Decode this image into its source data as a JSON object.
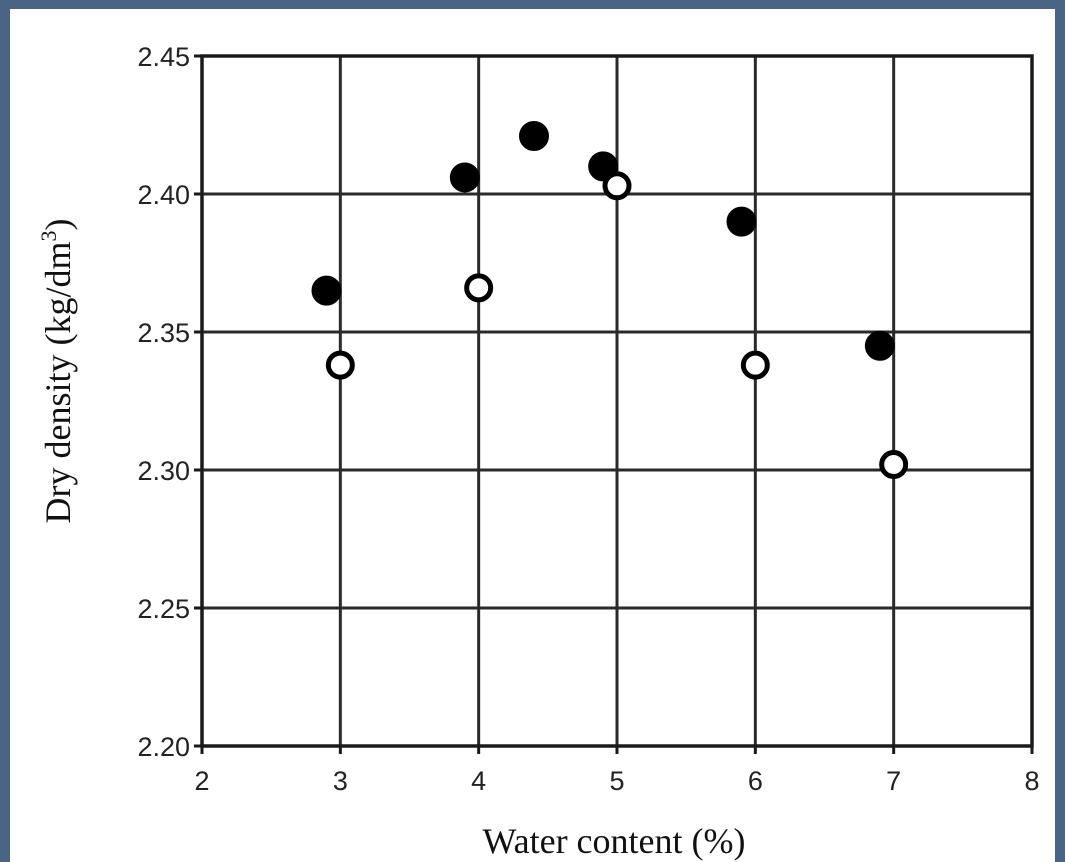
{
  "chart_data": {
    "type": "scatter",
    "title": "",
    "xlabel": "Water content (%)",
    "ylabel": "Dry density (kg/dm",
    "ylabel_sup": "3",
    "ylabel_close": ")",
    "xlim": [
      2,
      8
    ],
    "ylim": [
      2.2,
      2.45
    ],
    "grid": true,
    "x_ticks": [
      2,
      3,
      4,
      5,
      6,
      7,
      8
    ],
    "x_tick_labels": [
      "2",
      "3",
      "4",
      "5",
      "6",
      "7",
      "8"
    ],
    "y_ticks": [
      2.2,
      2.25,
      2.3,
      2.35,
      2.4,
      2.45
    ],
    "y_tick_labels": [
      "2.20",
      "2.25",
      "2.30",
      "2.35",
      "2.40",
      "2.45"
    ],
    "series": [
      {
        "marker": "filled-circle",
        "color": "#000000",
        "points": [
          {
            "x": 2.9,
            "y": 2.365
          },
          {
            "x": 3.9,
            "y": 2.406
          },
          {
            "x": 4.4,
            "y": 2.421
          },
          {
            "x": 4.9,
            "y": 2.41
          },
          {
            "x": 5.9,
            "y": 2.39
          },
          {
            "x": 6.9,
            "y": 2.345
          }
        ]
      },
      {
        "marker": "open-circle",
        "color": "#000000",
        "points": [
          {
            "x": 3.0,
            "y": 2.338
          },
          {
            "x": 4.0,
            "y": 2.366
          },
          {
            "x": 5.0,
            "y": 2.403
          },
          {
            "x": 6.0,
            "y": 2.338
          },
          {
            "x": 7.0,
            "y": 2.302
          }
        ]
      }
    ]
  }
}
